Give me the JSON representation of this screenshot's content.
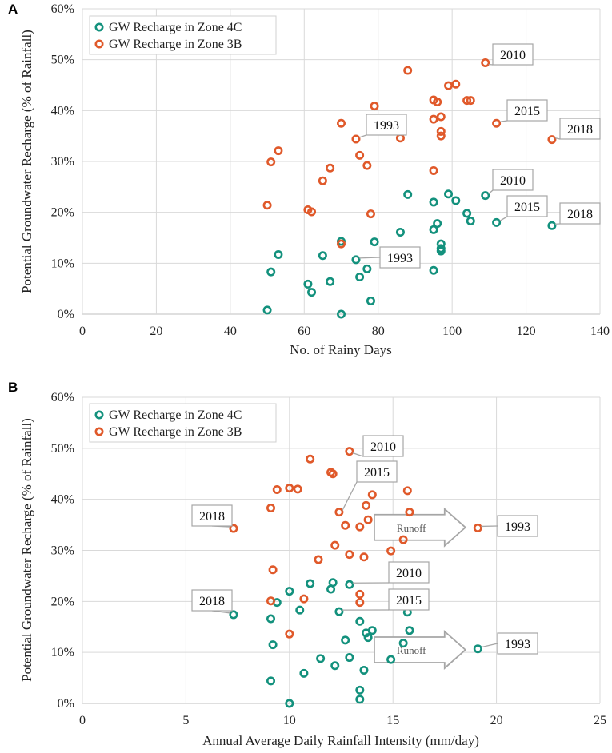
{
  "colors": {
    "zone4c": "#13917d",
    "zone3b": "#e0592a",
    "grid": "#d9d9d9"
  },
  "chart_data": [
    {
      "panel_label": "A",
      "type": "scatter",
      "xlabel": "No. of Rainy Days",
      "ylabel": "Potential Groundwater Recharge (% of Rainfall)",
      "xlim": [
        0,
        140
      ],
      "ylim": [
        0,
        60
      ],
      "xticks": [
        "0",
        "20",
        "40",
        "60",
        "80",
        "100",
        "120",
        "140"
      ],
      "yticks": [
        "0%",
        "10%",
        "20%",
        "30%",
        "40%",
        "50%",
        "60%"
      ],
      "legend": [
        "GW Recharge in Zone 4C",
        "GW Recharge in Zone 3B"
      ],
      "series": [
        {
          "name": "GW Recharge in Zone 4C",
          "color": "#13917d",
          "points": [
            [
              50,
              0.8
            ],
            [
              51,
              8.3
            ],
            [
              53,
              11.7
            ],
            [
              61,
              5.9
            ],
            [
              62,
              4.3
            ],
            [
              65,
              11.5
            ],
            [
              67,
              6.4
            ],
            [
              70,
              14.3
            ],
            [
              70,
              0
            ],
            [
              74,
              10.7
            ],
            [
              75,
              7.3
            ],
            [
              77,
              8.9
            ],
            [
              78,
              2.6
            ],
            [
              79,
              14.2
            ],
            [
              86,
              16.1
            ],
            [
              88,
              23.5
            ],
            [
              95,
              22
            ],
            [
              95,
              16.6
            ],
            [
              95,
              8.6
            ],
            [
              96,
              17.8
            ],
            [
              97,
              13.8
            ],
            [
              97,
              12.9
            ],
            [
              97,
              12.4
            ],
            [
              99,
              23.6
            ],
            [
              101,
              22.3
            ],
            [
              104,
              19.8
            ],
            [
              105,
              18.3
            ],
            [
              109,
              23.3
            ],
            [
              112,
              18
            ],
            [
              127,
              17.4
            ]
          ]
        },
        {
          "name": "GW Recharge in Zone 3B",
          "color": "#e0592a",
          "points": [
            [
              50,
              21.4
            ],
            [
              51,
              29.9
            ],
            [
              53,
              32.1
            ],
            [
              61,
              20.5
            ],
            [
              62,
              20.1
            ],
            [
              65,
              26.2
            ],
            [
              67,
              28.7
            ],
            [
              70,
              37.5
            ],
            [
              70,
              13.8
            ],
            [
              74,
              34.4
            ],
            [
              75,
              31.2
            ],
            [
              77,
              29.2
            ],
            [
              78,
              19.7
            ],
            [
              79,
              40.9
            ],
            [
              86,
              34.6
            ],
            [
              88,
              47.9
            ],
            [
              95,
              42.1
            ],
            [
              95,
              38.3
            ],
            [
              95,
              28.2
            ],
            [
              96,
              41.7
            ],
            [
              97,
              38.8
            ],
            [
              97,
              35.9
            ],
            [
              97,
              35
            ],
            [
              99,
              44.9
            ],
            [
              101,
              45.2
            ],
            [
              104,
              42
            ],
            [
              105,
              42
            ],
            [
              109,
              49.4
            ],
            [
              112,
              37.5
            ],
            [
              127,
              34.3
            ]
          ]
        }
      ],
      "annotations": [
        {
          "text": "2010",
          "series": "GW Recharge in Zone 3B",
          "x": 109,
          "y": 49.4
        },
        {
          "text": "2015",
          "series": "GW Recharge in Zone 3B",
          "x": 112,
          "y": 37.5
        },
        {
          "text": "2018",
          "series": "GW Recharge in Zone 3B",
          "x": 127,
          "y": 34.3
        },
        {
          "text": "1993",
          "series": "GW Recharge in Zone 3B",
          "x": 74,
          "y": 34.4
        },
        {
          "text": "2010",
          "series": "GW Recharge in Zone 4C",
          "x": 109,
          "y": 23.3
        },
        {
          "text": "2015",
          "series": "GW Recharge in Zone 4C",
          "x": 112,
          "y": 18
        },
        {
          "text": "2018",
          "series": "GW Recharge in Zone 4C",
          "x": 127,
          "y": 17.4
        },
        {
          "text": "1993",
          "series": "GW Recharge in Zone 4C",
          "x": 74,
          "y": 10.7
        }
      ],
      "arrows": []
    },
    {
      "panel_label": "B",
      "type": "scatter",
      "xlabel": "Annual Average Daily Rainfall Intensity (mm/day)",
      "ylabel": "Potential Groundwater Recharge (% of Rainfall)",
      "xlim": [
        0,
        25
      ],
      "ylim": [
        0,
        60
      ],
      "xticks": [
        "0",
        "5",
        "10",
        "15",
        "20",
        "25"
      ],
      "yticks": [
        "0%",
        "10%",
        "20%",
        "30%",
        "40%",
        "50%",
        "60%"
      ],
      "legend": [
        "GW Recharge in Zone 4C",
        "GW Recharge in Zone 3B"
      ],
      "series": [
        {
          "name": "GW Recharge in Zone 4C",
          "color": "#13917d",
          "points": [
            [
              7.3,
              17.4
            ],
            [
              9.1,
              16.6
            ],
            [
              9.2,
              11.5
            ],
            [
              9.1,
              4.4
            ],
            [
              9.4,
              19.8
            ],
            [
              10,
              22
            ],
            [
              10,
              0
            ],
            [
              10.5,
              18.3
            ],
            [
              10.7,
              5.9
            ],
            [
              11,
              23.5
            ],
            [
              11.5,
              8.8
            ],
            [
              12,
              22.4
            ],
            [
              12.1,
              23.7
            ],
            [
              12.2,
              7.4
            ],
            [
              12.4,
              18
            ],
            [
              12.7,
              12.4
            ],
            [
              12.9,
              23.3
            ],
            [
              12.9,
              9
            ],
            [
              13.4,
              16.1
            ],
            [
              13.4,
              2.6
            ],
            [
              13.4,
              0.8
            ],
            [
              13.6,
              6.5
            ],
            [
              13.7,
              13.8
            ],
            [
              13.8,
              12.9
            ],
            [
              14,
              14.3
            ],
            [
              14.9,
              8.6
            ],
            [
              15.5,
              11.8
            ],
            [
              15.7,
              17.9
            ],
            [
              15.8,
              14.3
            ],
            [
              19.1,
              10.7
            ]
          ]
        },
        {
          "name": "GW Recharge in Zone 3B",
          "color": "#e0592a",
          "points": [
            [
              7.3,
              34.3
            ],
            [
              9.1,
              38.3
            ],
            [
              9.2,
              26.2
            ],
            [
              9.1,
              20.1
            ],
            [
              9.4,
              41.9
            ],
            [
              10,
              42.2
            ],
            [
              10,
              13.6
            ],
            [
              10.4,
              42
            ],
            [
              10.7,
              20.5
            ],
            [
              11,
              47.9
            ],
            [
              11.4,
              28.2
            ],
            [
              12,
              45.3
            ],
            [
              12.1,
              45
            ],
            [
              12.2,
              31
            ],
            [
              12.4,
              37.5
            ],
            [
              12.7,
              34.9
            ],
            [
              12.9,
              49.4
            ],
            [
              12.9,
              29.2
            ],
            [
              13.4,
              34.6
            ],
            [
              13.4,
              21.4
            ],
            [
              13.4,
              19.8
            ],
            [
              13.6,
              28.7
            ],
            [
              13.7,
              38.8
            ],
            [
              13.8,
              36
            ],
            [
              14,
              40.9
            ],
            [
              14.9,
              29.9
            ],
            [
              15.5,
              32.1
            ],
            [
              15.7,
              41.7
            ],
            [
              15.8,
              37.5
            ],
            [
              19.1,
              34.4
            ]
          ]
        }
      ],
      "annotations": [
        {
          "text": "2010",
          "series": "GW Recharge in Zone 3B",
          "x": 12.9,
          "y": 49.4
        },
        {
          "text": "2015",
          "series": "GW Recharge in Zone 3B",
          "x": 12.4,
          "y": 37.5
        },
        {
          "text": "2018",
          "series": "GW Recharge in Zone 3B",
          "x": 7.3,
          "y": 34.3
        },
        {
          "text": "1993",
          "series": "GW Recharge in Zone 3B",
          "x": 19.1,
          "y": 34.4
        },
        {
          "text": "2010",
          "series": "GW Recharge in Zone 4C",
          "x": 12.9,
          "y": 23.3
        },
        {
          "text": "2015",
          "series": "GW Recharge in Zone 4C",
          "x": 12.4,
          "y": 18
        },
        {
          "text": "2018",
          "series": "GW Recharge in Zone 4C",
          "x": 7.3,
          "y": 17.4
        },
        {
          "text": "1993",
          "series": "GW Recharge in Zone 4C",
          "x": 19.1,
          "y": 10.7
        }
      ],
      "arrows": [
        {
          "text": "Runoff",
          "x_from": 14.1,
          "x_to": 18.5,
          "y": 34.5
        },
        {
          "text": "Runoff",
          "x_from": 14.1,
          "x_to": 18.5,
          "y": 10.5
        }
      ]
    }
  ]
}
